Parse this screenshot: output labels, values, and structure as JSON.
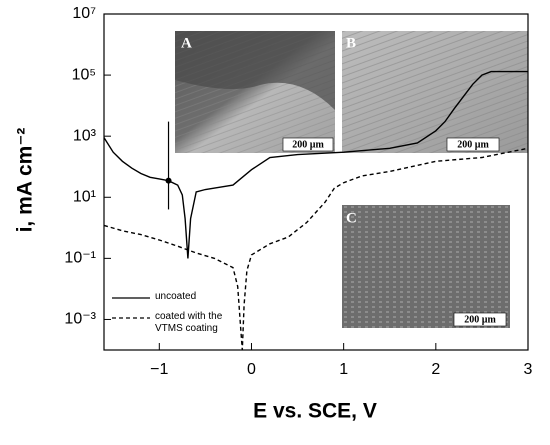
{
  "chart_data": {
    "type": "line",
    "xlabel": "E vs. SCE, V",
    "ylabel": "i, mA cm⁻²",
    "log_y": true,
    "xlim": [
      -1.6,
      3
    ],
    "ylim": [
      0.0001,
      10000000
    ],
    "xticks": [
      {
        "value": -1,
        "label": "−1"
      },
      0,
      1,
      2,
      3
    ],
    "yticks": [
      {
        "value": 0.001,
        "label": "10⁻³"
      },
      {
        "value": 0.1,
        "label": "10⁻¹"
      },
      {
        "value": 10,
        "label": "10¹"
      },
      {
        "value": 1000,
        "label": "10³"
      },
      {
        "value": 100000,
        "label": "10⁵"
      },
      {
        "value": 10000000,
        "label": "10⁷"
      }
    ],
    "legend": "lower left",
    "series": [
      {
        "name": "uncoated",
        "color": "#000000",
        "dash": "solid",
        "x": [
          -1.6,
          -1.5,
          -1.4,
          -1.3,
          -1.2,
          -1.1,
          -1.0,
          -0.9,
          -0.8,
          -0.75,
          -0.72,
          -0.69,
          -0.66,
          -0.6,
          -0.5,
          -0.4,
          -0.2,
          0,
          0.2,
          0.5,
          1.0,
          1.5,
          1.8,
          2.0,
          2.1,
          2.2,
          2.3,
          2.4,
          2.5,
          2.6,
          3.0
        ],
        "values": [
          900,
          300,
          150,
          90,
          60,
          45,
          40,
          35,
          25,
          12,
          2,
          0.1,
          2,
          15,
          18,
          20,
          25,
          80,
          200,
          250,
          300,
          400,
          600,
          1500,
          3000,
          8000,
          20000,
          50000,
          100000,
          130000,
          130000
        ]
      },
      {
        "name": "coated with the VTMS coating",
        "color": "#000000",
        "dash": "dashed",
        "x": [
          -1.6,
          -1.4,
          -1.2,
          -1.0,
          -0.8,
          -0.6,
          -0.4,
          -0.2,
          -0.15,
          -0.12,
          -0.1,
          -0.08,
          -0.05,
          0,
          0.2,
          0.4,
          0.6,
          0.8,
          0.9,
          1.0,
          1.2,
          1.5,
          2.0,
          2.5,
          3.0
        ],
        "values": [
          1.2,
          0.8,
          0.6,
          0.4,
          0.25,
          0.15,
          0.1,
          0.05,
          0.012,
          0.0007,
          0.0001,
          0.003,
          0.04,
          0.13,
          0.3,
          0.5,
          1.5,
          7,
          20,
          30,
          50,
          70,
          150,
          200,
          400
        ]
      }
    ],
    "error_bar": {
      "x": -0.9,
      "value": 35,
      "low": 4,
      "high": 3000
    },
    "insets": [
      {
        "letter": "A",
        "scale": "200 µm"
      },
      {
        "letter": "B",
        "scale": "200 µm"
      },
      {
        "letter": "C",
        "scale": "200 µm"
      }
    ]
  }
}
